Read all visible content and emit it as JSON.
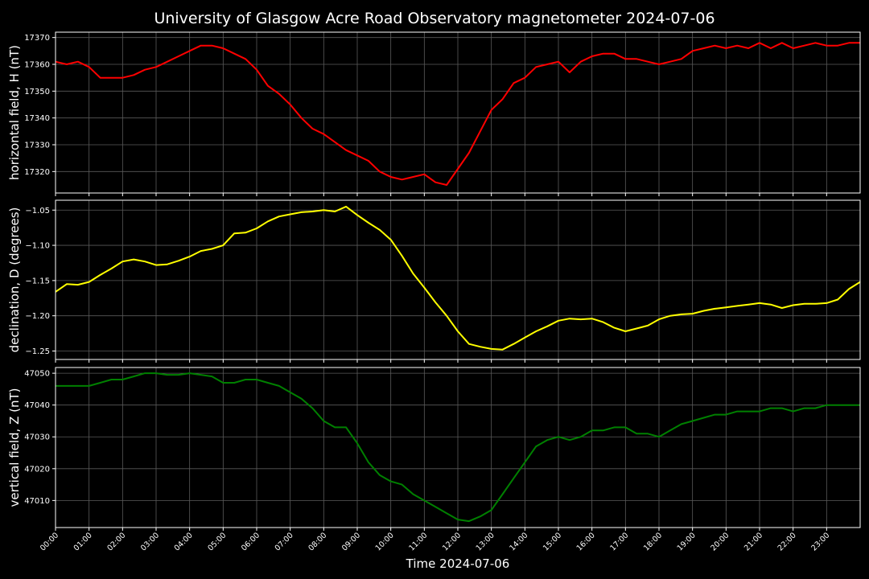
{
  "title": "University of Glasgow Acre Road Observatory magnetometer 2024-07-06",
  "xlabel": "Time 2024-07-06",
  "colors": {
    "background": "#000000",
    "foreground": "#ffffff",
    "grid": "#5a5a5a",
    "H": "#ff0000",
    "D": "#ffff00",
    "Z": "#008000"
  },
  "chart_data": [
    {
      "type": "line",
      "id": "H",
      "ylabel": "horizontal field, H (nT)",
      "ylim": [
        17312,
        17372
      ],
      "yticks": [
        17320,
        17330,
        17340,
        17350,
        17360,
        17370
      ],
      "ytick_labels": [
        "17320",
        "17330",
        "17340",
        "17350",
        "17360",
        "17370"
      ],
      "xlim": [
        "00:00",
        "24:00"
      ],
      "xticks": [
        "00:00",
        "01:00",
        "02:00",
        "03:00",
        "04:00",
        "05:00",
        "06:00",
        "07:00",
        "08:00",
        "09:00",
        "10:00",
        "11:00",
        "12:00",
        "13:00",
        "14:00",
        "15:00",
        "16:00",
        "17:00",
        "18:00",
        "19:00",
        "20:00",
        "21:00",
        "22:00",
        "23:00"
      ],
      "grid": true,
      "color": "#ff0000",
      "x": [
        "00:00",
        "00:20",
        "00:40",
        "01:00",
        "01:20",
        "01:40",
        "02:00",
        "02:20",
        "02:40",
        "03:00",
        "03:20",
        "03:40",
        "04:00",
        "04:20",
        "04:40",
        "05:00",
        "05:20",
        "05:40",
        "06:00",
        "06:20",
        "06:40",
        "07:00",
        "07:20",
        "07:40",
        "08:00",
        "08:20",
        "08:40",
        "09:00",
        "09:20",
        "09:40",
        "10:00",
        "10:20",
        "10:40",
        "11:00",
        "11:20",
        "11:40",
        "12:00",
        "12:20",
        "12:40",
        "13:00",
        "13:20",
        "13:40",
        "14:00",
        "14:20",
        "14:40",
        "15:00",
        "15:20",
        "15:40",
        "16:00",
        "16:20",
        "16:40",
        "17:00",
        "17:20",
        "17:40",
        "18:00",
        "18:20",
        "18:40",
        "19:00",
        "19:20",
        "19:40",
        "20:00",
        "20:20",
        "20:40",
        "21:00",
        "21:20",
        "21:40",
        "22:00",
        "22:20",
        "22:40",
        "23:00",
        "23:20",
        "23:40",
        "24:00"
      ],
      "y": [
        17361,
        17360,
        17361,
        17359,
        17355,
        17355,
        17355,
        17356,
        17358,
        17359,
        17361,
        17363,
        17365,
        17367,
        17367,
        17366,
        17364,
        17362,
        17358,
        17352,
        17349,
        17345,
        17340,
        17336,
        17334,
        17331,
        17328,
        17326,
        17324,
        17320,
        17318,
        17317,
        17318,
        17319,
        17316,
        17315,
        17321,
        17327,
        17335,
        17343,
        17347,
        17353,
        17355,
        17359,
        17360,
        17361,
        17357,
        17361,
        17363,
        17364,
        17364,
        17362,
        17362,
        17361,
        17360,
        17361,
        17362,
        17365,
        17366,
        17367,
        17366,
        17367,
        17366,
        17368,
        17366,
        17368,
        17366,
        17367,
        17368,
        17367,
        17367,
        17368,
        17368
      ]
    },
    {
      "type": "line",
      "id": "D",
      "ylabel": "declination, D (degrees)",
      "ylim": [
        -1.262,
        -1.036
      ],
      "yticks": [
        -1.25,
        -1.2,
        -1.15,
        -1.1,
        -1.05
      ],
      "ytick_labels": [
        "−1.25",
        "−1.20",
        "−1.15",
        "−1.10",
        "−1.05"
      ],
      "xlim": [
        "00:00",
        "24:00"
      ],
      "grid": true,
      "color": "#ffff00",
      "x": [
        "00:00",
        "00:20",
        "00:40",
        "01:00",
        "01:20",
        "01:40",
        "02:00",
        "02:20",
        "02:40",
        "03:00",
        "03:20",
        "03:40",
        "04:00",
        "04:20",
        "04:40",
        "05:00",
        "05:20",
        "05:40",
        "06:00",
        "06:20",
        "06:40",
        "07:00",
        "07:20",
        "07:40",
        "08:00",
        "08:20",
        "08:40",
        "09:00",
        "09:20",
        "09:40",
        "10:00",
        "10:20",
        "10:40",
        "11:00",
        "11:20",
        "11:40",
        "12:00",
        "12:20",
        "12:40",
        "13:00",
        "13:20",
        "13:40",
        "14:00",
        "14:20",
        "14:40",
        "15:00",
        "15:20",
        "15:40",
        "16:00",
        "16:20",
        "16:40",
        "17:00",
        "17:20",
        "17:40",
        "18:00",
        "18:20",
        "18:40",
        "19:00",
        "19:20",
        "19:40",
        "20:00",
        "20:20",
        "20:40",
        "21:00",
        "21:20",
        "21:40",
        "22:00",
        "22:20",
        "22:40",
        "23:00",
        "23:20",
        "23:40",
        "24:00"
      ],
      "y": [
        -1.166,
        -1.155,
        -1.156,
        -1.152,
        -1.142,
        -1.133,
        -1.123,
        -1.12,
        -1.123,
        -1.128,
        -1.127,
        -1.122,
        -1.116,
        -1.108,
        -1.105,
        -1.1,
        -1.083,
        -1.082,
        -1.076,
        -1.066,
        -1.059,
        -1.056,
        -1.053,
        -1.052,
        -1.05,
        -1.052,
        -1.045,
        -1.057,
        -1.068,
        -1.078,
        -1.092,
        -1.115,
        -1.14,
        -1.16,
        -1.181,
        -1.2,
        -1.222,
        -1.24,
        -1.244,
        -1.247,
        -1.248,
        -1.24,
        -1.231,
        -1.222,
        -1.215,
        -1.207,
        -1.204,
        -1.205,
        -1.204,
        -1.209,
        -1.217,
        -1.222,
        -1.218,
        -1.214,
        -1.205,
        -1.2,
        -1.198,
        -1.197,
        -1.193,
        -1.19,
        -1.188,
        -1.186,
        -1.184,
        -1.182,
        -1.184,
        -1.189,
        -1.185,
        -1.183,
        -1.183,
        -1.182,
        -1.177,
        -1.162,
        -1.152
      ]
    },
    {
      "type": "line",
      "id": "Z",
      "ylabel": "vertical field, Z (nT)",
      "ylim": [
        47001.5,
        47051.8
      ],
      "yticks": [
        47010,
        47020,
        47030,
        47040,
        47050
      ],
      "ytick_labels": [
        "47010",
        "47020",
        "47030",
        "47040",
        "47050"
      ],
      "xlim": [
        "00:00",
        "24:00"
      ],
      "grid": true,
      "color": "#008000",
      "x": [
        "00:00",
        "00:20",
        "00:40",
        "01:00",
        "01:20",
        "01:40",
        "02:00",
        "02:20",
        "02:40",
        "03:00",
        "03:20",
        "03:40",
        "04:00",
        "04:20",
        "04:40",
        "05:00",
        "05:20",
        "05:40",
        "06:00",
        "06:20",
        "06:40",
        "07:00",
        "07:20",
        "07:40",
        "08:00",
        "08:20",
        "08:40",
        "09:00",
        "09:20",
        "09:40",
        "10:00",
        "10:20",
        "10:40",
        "11:00",
        "11:20",
        "11:40",
        "12:00",
        "12:20",
        "12:40",
        "13:00",
        "13:20",
        "13:40",
        "14:00",
        "14:20",
        "14:40",
        "15:00",
        "15:20",
        "15:40",
        "16:00",
        "16:20",
        "16:40",
        "17:00",
        "17:20",
        "17:40",
        "18:00",
        "18:20",
        "18:40",
        "19:00",
        "19:20",
        "19:40",
        "20:00",
        "20:20",
        "20:40",
        "21:00",
        "21:20",
        "21:40",
        "22:00",
        "22:20",
        "22:40",
        "23:00",
        "23:20",
        "23:40",
        "24:00"
      ],
      "y": [
        47046,
        47046,
        47046,
        47046,
        47047,
        47048,
        47048,
        47049,
        47050,
        47050,
        47049.5,
        47049.5,
        47050,
        47049.5,
        47049,
        47047,
        47047,
        47048,
        47048,
        47047,
        47046,
        47044,
        47042,
        47039,
        47035,
        47033,
        47033,
        47028,
        47022,
        47018,
        47016,
        47015,
        47012,
        47010,
        47008,
        47006,
        47004,
        47003.5,
        47005,
        47007,
        47012,
        47017,
        47022,
        47027,
        47029,
        47030,
        47029,
        47030,
        47032,
        47032,
        47033,
        47033,
        47031,
        47031,
        47030,
        47032,
        47034,
        47035,
        47036,
        47037,
        47037,
        47038,
        47038,
        47038,
        47039,
        47039,
        47038,
        47039,
        47039,
        47040,
        47040,
        47040,
        47040
      ]
    }
  ]
}
